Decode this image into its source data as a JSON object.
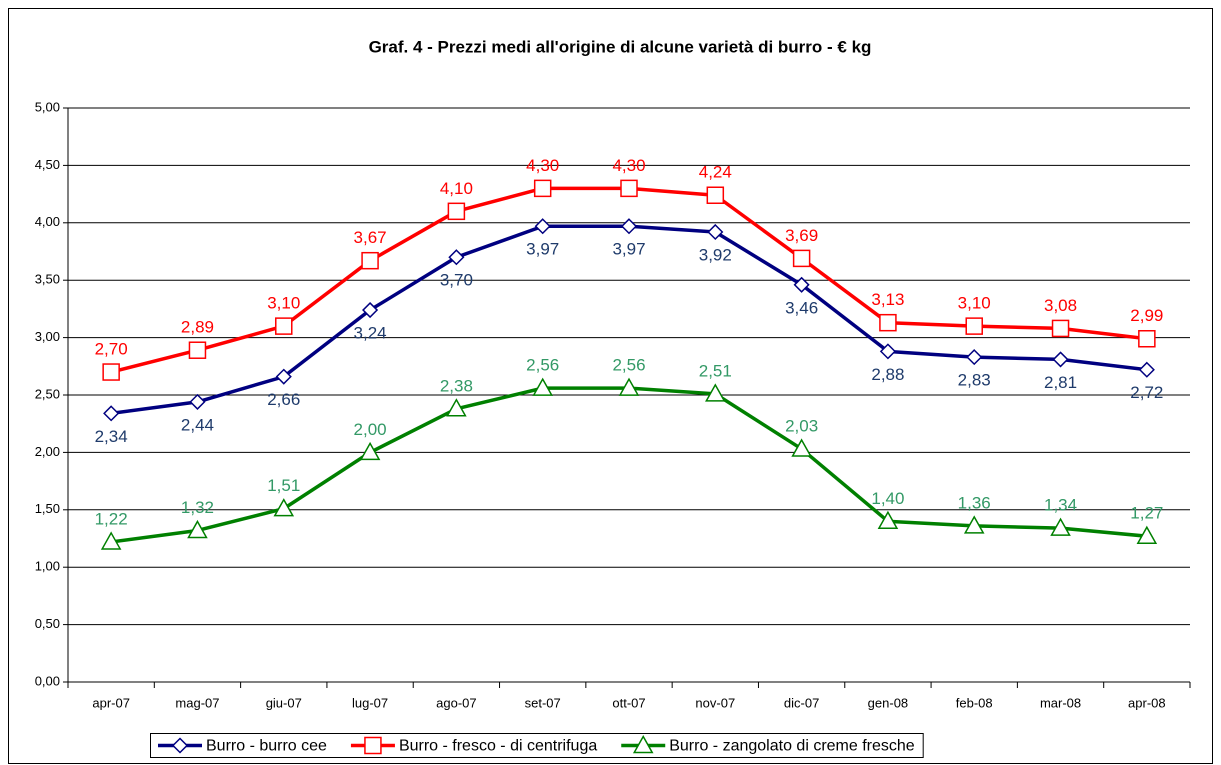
{
  "chart_data": {
    "type": "line",
    "title": "Graf. 4 - Prezzi medi all'origine di alcune varietà di burro - € kg",
    "categories": [
      "apr-07",
      "mag-07",
      "giu-07",
      "lug-07",
      "ago-07",
      "set-07",
      "ott-07",
      "nov-07",
      "dic-07",
      "gen-08",
      "feb-08",
      "mar-08",
      "apr-08"
    ],
    "ylim": [
      0,
      5
    ],
    "yticks": [
      {
        "value": 0,
        "label": "0,00"
      },
      {
        "value": 0.5,
        "label": "0,50"
      },
      {
        "value": 1,
        "label": "1,00"
      },
      {
        "value": 1.5,
        "label": "1,50"
      },
      {
        "value": 2,
        "label": "2,00"
      },
      {
        "value": 2.5,
        "label": "2,50"
      },
      {
        "value": 3,
        "label": "3,00"
      },
      {
        "value": 3.5,
        "label": "3,50"
      },
      {
        "value": 4,
        "label": "4,00"
      },
      {
        "value": 4.5,
        "label": "4,50"
      },
      {
        "value": 5,
        "label": "5,00"
      }
    ],
    "grid": true,
    "legend": "bottom",
    "series": [
      {
        "name": "Burro - burro cee",
        "color": "#000080",
        "marker": "diamond",
        "label_color": "#1f3b6b",
        "label_position": "below",
        "values": [
          2.34,
          2.44,
          2.66,
          3.24,
          3.7,
          3.97,
          3.97,
          3.92,
          3.46,
          2.88,
          2.83,
          2.81,
          2.72
        ],
        "value_labels": [
          "2,34",
          "2,44",
          "2,66",
          "3,24",
          "3,70",
          "3,97",
          "3,97",
          "3,92",
          "3,46",
          "2,88",
          "2,83",
          "2,81",
          "2,72"
        ]
      },
      {
        "name": "Burro - fresco - di centrifuga",
        "color": "#ff0000",
        "marker": "square",
        "label_color": "#ff0000",
        "label_position": "above",
        "values": [
          2.7,
          2.89,
          3.1,
          3.67,
          4.1,
          4.3,
          4.3,
          4.24,
          3.69,
          3.13,
          3.1,
          3.08,
          2.99
        ],
        "value_labels": [
          "2,70",
          "2,89",
          "3,10",
          "3,67",
          "4,10",
          "4,30",
          "4,30",
          "4,24",
          "3,69",
          "3,13",
          "3,10",
          "3,08",
          "2,99"
        ]
      },
      {
        "name": "Burro - zangolato di creme fresche",
        "color": "#008000",
        "marker": "triangle",
        "label_color": "#339966",
        "label_position": "above",
        "values": [
          1.22,
          1.32,
          1.51,
          2.0,
          2.38,
          2.56,
          2.56,
          2.51,
          2.03,
          1.4,
          1.36,
          1.34,
          1.27
        ],
        "value_labels": [
          "1,22",
          "1,32",
          "1,51",
          "2,00",
          "2,38",
          "2,56",
          "2,56",
          "2,51",
          "2,03",
          "1,40",
          "1,36",
          "1,34",
          "1,27"
        ]
      }
    ]
  }
}
